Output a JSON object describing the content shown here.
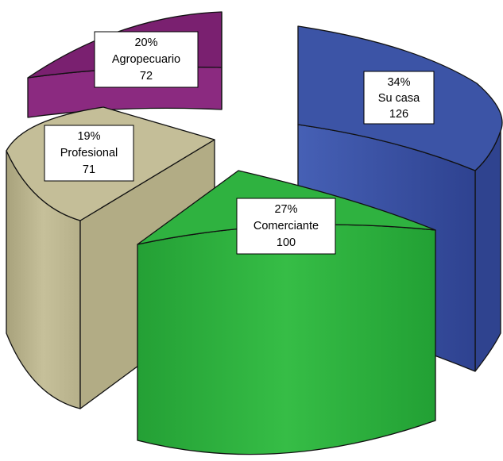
{
  "chart_data": {
    "type": "pie",
    "variant": "3d-exploded",
    "slices": [
      {
        "category": "Su casa",
        "percent": "34%",
        "count": "126",
        "value": 126,
        "color": "#3A4F9E"
      },
      {
        "category": "Comerciante",
        "percent": "27%",
        "count": "100",
        "value": 100,
        "color": "#2AAA3A"
      },
      {
        "category": "Profesional",
        "percent": "19%",
        "count": "71",
        "value": 71,
        "color": "#BDB78E"
      },
      {
        "category": "Agropecuario",
        "percent": "20%",
        "count": "72",
        "value": 72,
        "color": "#8A2A7E"
      }
    ],
    "title": "",
    "legend": "none"
  }
}
